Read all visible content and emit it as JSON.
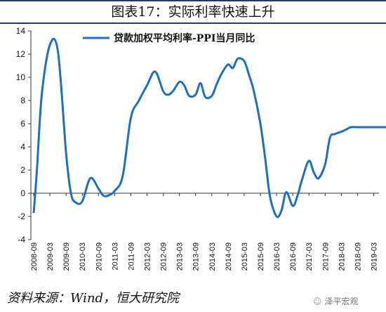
{
  "title": "图表17：实际利率快速上升",
  "source": "资料来源：Wind，恒大研究院",
  "watermark": "泽平宏观",
  "colors": {
    "line": "#1f6fbf",
    "axis": "#333333"
  },
  "chart_data": {
    "type": "line",
    "ylim": [
      -4,
      14
    ],
    "yticks": [
      -4,
      -2,
      0,
      2,
      4,
      6,
      8,
      10,
      12,
      14
    ],
    "legend_position": "top-center",
    "grid": false,
    "categories": [
      "2008-09",
      "2009-03",
      "2009-09",
      "2010-03",
      "2010-09",
      "2011-03",
      "2011-09",
      "2012-03",
      "2012-09",
      "2013-03",
      "2013-09",
      "2014-03",
      "2014-09",
      "2015-03",
      "2015-09",
      "2016-03",
      "2016-09",
      "2017-03",
      "2017-09",
      "2018-03",
      "2018-09",
      "2019-03"
    ],
    "series": [
      {
        "name": "贷款加权平均利率-PPI当月同比",
        "x": [
          0,
          0.2,
          0.5,
          1,
          1.5,
          2,
          2.3,
          2.6,
          3,
          3.5,
          4,
          4.3,
          4.6,
          5,
          5.5,
          6,
          6.5,
          7,
          7.5,
          8,
          8.3,
          8.6,
          9,
          9.3,
          9.6,
          10,
          10.3,
          10.6,
          11,
          11.3,
          11.6,
          12,
          12.3,
          12.6,
          13,
          13.3,
          13.6,
          14,
          14.3,
          14.6,
          15,
          15.3,
          15.6,
          16,
          16.3,
          16.6,
          17,
          17.3,
          17.6,
          18,
          18.3,
          18.6,
          19,
          19.3,
          19.6,
          20,
          20.3,
          20.6,
          21,
          21.3,
          21.6,
          22,
          22.2
        ],
        "values": [
          -1.7,
          2,
          8.5,
          12.8,
          12.2,
          3.5,
          0,
          -0.8,
          -0.7,
          1.3,
          0.4,
          -0.2,
          -0.2,
          0.2,
          1.5,
          6.5,
          8,
          9.3,
          10.5,
          8.8,
          8.5,
          8.8,
          9.6,
          9.3,
          8.4,
          8.5,
          9.5,
          8.3,
          8.4,
          9.4,
          10.3,
          11.1,
          10.8,
          11.6,
          11.4,
          10.2,
          8.8,
          6,
          3,
          -0.3,
          -2,
          -1.5,
          0.1,
          -1.1,
          -0.2,
          1.3,
          2.8,
          1.8,
          1.3,
          2.5,
          4.8,
          5.1,
          5.3,
          5.5,
          5.7,
          5.7,
          5.7,
          5.7,
          5.7,
          5.7,
          5.7,
          5.7,
          5.7
        ]
      }
    ]
  }
}
